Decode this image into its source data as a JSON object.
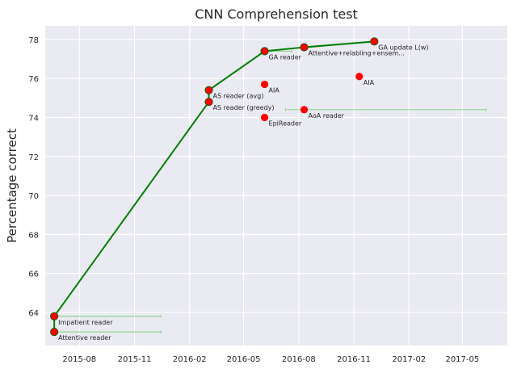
{
  "chart_data": {
    "type": "scatter",
    "title": "CNN Comprehension test",
    "xlabel": "",
    "ylabel": "Percentage correct",
    "xlim": [
      "2015-06-05",
      "2017-07-15"
    ],
    "ylim": [
      62.3,
      78.7
    ],
    "grid": true,
    "x_ticks": [
      "2015-08",
      "2015-11",
      "2016-02",
      "2016-05",
      "2016-08",
      "2016-11",
      "2017-02",
      "2017-05"
    ],
    "y_ticks": [
      64,
      66,
      68,
      70,
      72,
      74,
      76,
      78
    ],
    "colors": {
      "background": "#eaeaf2",
      "grid": "#ffffff",
      "frontier": "#008000",
      "points": "#ff0000",
      "ranges": "#8fd68f"
    },
    "points": [
      {
        "label": "Impatient reader",
        "x": "2015-06-20",
        "y": 63.8,
        "range_end": "2015-12-15"
      },
      {
        "label": "Attentive reader",
        "x": "2015-06-20",
        "y": 63.0,
        "range_end": "2015-12-15"
      },
      {
        "label": "AS reader (avg)",
        "x": "2016-03-04",
        "y": 75.4
      },
      {
        "label": "AS reader (greedy)",
        "x": "2016-03-04",
        "y": 74.8
      },
      {
        "label": "GA reader",
        "x": "2016-06-05",
        "y": 77.4,
        "range_end": "2016-07-20"
      },
      {
        "label": "AIA",
        "x": "2016-06-05",
        "y": 75.7
      },
      {
        "label": "EpiReader",
        "x": "2016-06-05",
        "y": 74.0
      },
      {
        "label": "Attentive+relabling+ensem...",
        "x": "2016-08-10",
        "y": 77.6
      },
      {
        "label": "AoA reader",
        "x": "2016-08-10",
        "y": 74.4,
        "range_start": "2016-07-10",
        "range_end": "2017-06-10"
      },
      {
        "label": "AIA",
        "x": "2016-11-10",
        "y": 76.1
      },
      {
        "label": "GA update L(w)",
        "x": "2016-12-05",
        "y": 77.9
      }
    ],
    "frontier": [
      {
        "x": "2015-06-20",
        "y": 63.0
      },
      {
        "x": "2015-06-20",
        "y": 63.8
      },
      {
        "x": "2016-03-04",
        "y": 74.8
      },
      {
        "x": "2016-03-04",
        "y": 75.4
      },
      {
        "x": "2016-06-05",
        "y": 77.4
      },
      {
        "x": "2016-08-10",
        "y": 77.6
      },
      {
        "x": "2016-12-05",
        "y": 77.9
      }
    ]
  }
}
